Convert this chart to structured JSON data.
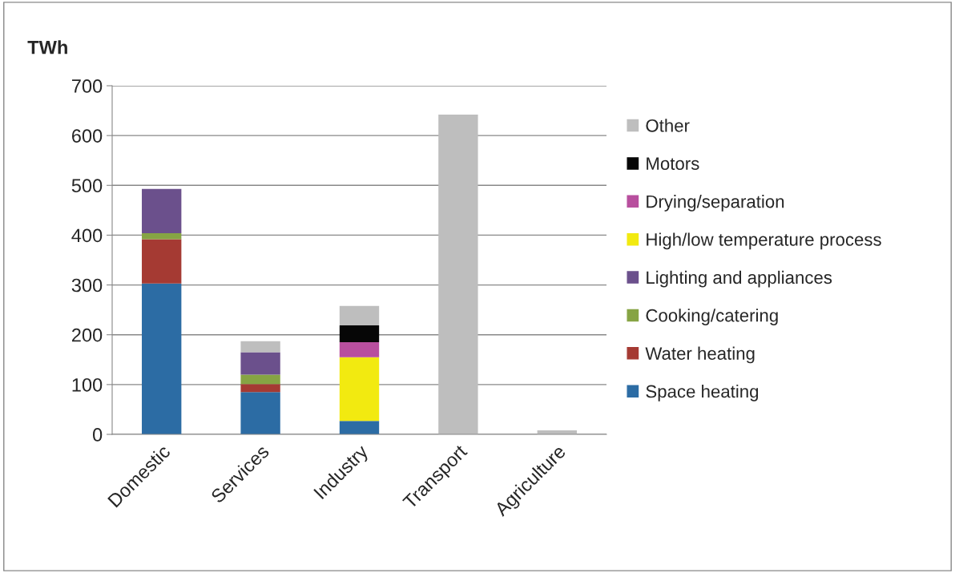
{
  "chart_data": {
    "type": "bar",
    "stacked": true,
    "ylabel": "TWh",
    "categories": [
      "Domestic",
      "Services",
      "Industry",
      "Transport",
      "Agriculture"
    ],
    "series": [
      {
        "name": "Space heating",
        "color": "#2c6ca4",
        "values": [
          303,
          85,
          27,
          0,
          0
        ]
      },
      {
        "name": "Water heating",
        "color": "#a53a33",
        "values": [
          89,
          16,
          0,
          0,
          0
        ]
      },
      {
        "name": "Cooking/catering",
        "color": "#86a444",
        "values": [
          12,
          19,
          0,
          0,
          0
        ]
      },
      {
        "name": "Lighting and appliances",
        "color": "#6b508c",
        "values": [
          89,
          45,
          0,
          0,
          0
        ]
      },
      {
        "name": "High/low temperature process",
        "color": "#f2ea10",
        "values": [
          0,
          0,
          128,
          0,
          0
        ]
      },
      {
        "name": "Drying/separation",
        "color": "#b84f9e",
        "values": [
          0,
          0,
          30,
          0,
          0
        ]
      },
      {
        "name": "Motors",
        "color": "#060606",
        "values": [
          0,
          0,
          34,
          0,
          0
        ]
      },
      {
        "name": "Other",
        "color": "#bebebe",
        "values": [
          0,
          22,
          39,
          642,
          8
        ]
      }
    ],
    "ylim": [
      0,
      700
    ],
    "yticks": [
      0,
      100,
      200,
      300,
      400,
      500,
      600,
      700
    ],
    "grid": "y",
    "legend": "right"
  }
}
